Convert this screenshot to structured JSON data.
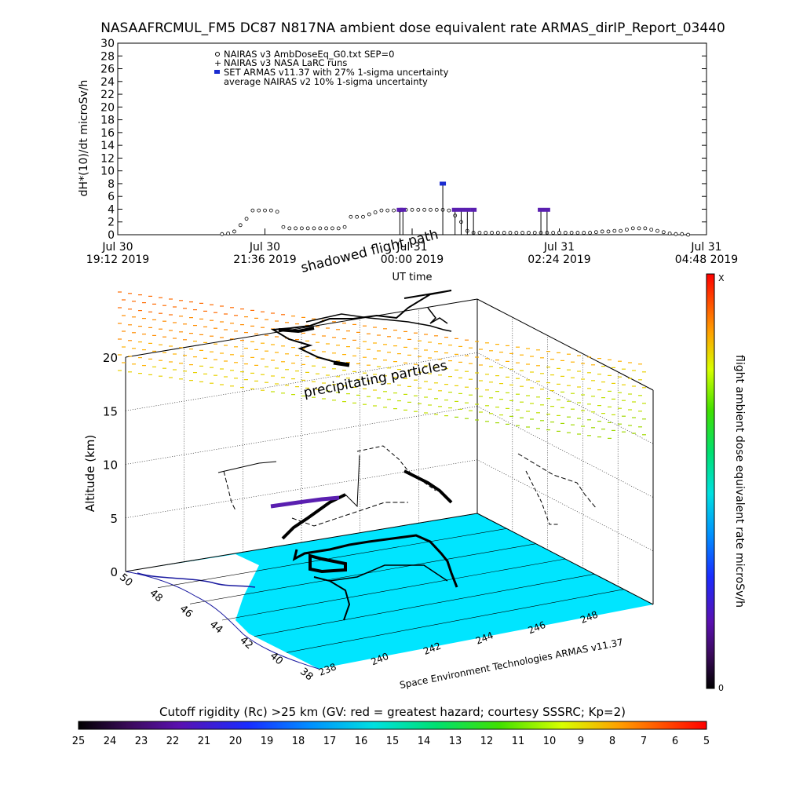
{
  "title": "NASAAFRCMUL_FM5 DC87 N817NA ambient dose equivalent rate ARMAS_dirIP_Report_03440",
  "chart_data": [
    {
      "type": "scatter",
      "ylabel": "dH*(10)/dt microSv/h",
      "xlabel": "UT time",
      "ylim": [
        0,
        30
      ],
      "yticks": [
        0,
        2,
        4,
        6,
        8,
        10,
        12,
        14,
        16,
        18,
        20,
        22,
        24,
        26,
        28,
        30
      ],
      "xticks": [
        {
          "line1": "Jul 30",
          "line2": "19:12 2019"
        },
        {
          "line1": "Jul 30",
          "line2": "21:36 2019"
        },
        {
          "line1": "Jul 31",
          "line2": "00:00 2019"
        },
        {
          "line1": "Jul 31",
          "line2": "02:24 2019"
        },
        {
          "line1": "Jul 31",
          "line2": "04:48 2019"
        }
      ],
      "legend": [
        "NAIRAS v3 AmbDoseEq_G0.txt SEP=0",
        "NAIRAS v3 NASA LaRC runs",
        "SET ARMAS v11.37 with 27% 1-sigma uncertainty",
        "average NAIRAS v2 10% 1-sigma uncertainty"
      ],
      "legend_position": "top-left",
      "nairas_series_hours": [
        20.9,
        21.0,
        21.1,
        21.2,
        21.3,
        21.4,
        21.5,
        21.6,
        21.7,
        21.8,
        21.9,
        22.0,
        22.1,
        22.2,
        22.3,
        22.4,
        22.5,
        22.6,
        22.7,
        22.8,
        22.9,
        23.0,
        23.1,
        23.2,
        23.3,
        23.4,
        23.5,
        23.6,
        23.7,
        23.8,
        23.9,
        24.0,
        24.1,
        24.2,
        24.3,
        24.4,
        24.5,
        24.6,
        24.7,
        24.8,
        24.9,
        25.0,
        25.1,
        25.2,
        25.3,
        25.4,
        25.5,
        25.6,
        25.7,
        25.8,
        25.9,
        26.0,
        26.1,
        26.2,
        26.3,
        26.4,
        26.5,
        26.6,
        26.7,
        26.8,
        26.9,
        27.0,
        27.1,
        27.2,
        27.3,
        27.4,
        27.5,
        27.6,
        27.7,
        27.8,
        27.9,
        28.0,
        28.1,
        28.2,
        28.3,
        28.4,
        28.5
      ],
      "nairas_series_values": [
        0.1,
        0.2,
        0.5,
        1.5,
        2.5,
        3.8,
        3.8,
        3.8,
        3.8,
        3.6,
        1.2,
        1.0,
        1.0,
        1.0,
        1.0,
        1.0,
        1.0,
        1.0,
        1.0,
        1.0,
        1.2,
        2.8,
        2.8,
        2.8,
        3.2,
        3.5,
        3.8,
        3.8,
        3.8,
        3.8,
        3.9,
        3.9,
        3.9,
        3.9,
        3.9,
        3.9,
        3.9,
        3.8,
        3.0,
        2.0,
        0.6,
        0.3,
        0.3,
        0.3,
        0.3,
        0.3,
        0.3,
        0.3,
        0.3,
        0.3,
        0.3,
        0.3,
        0.3,
        0.3,
        0.3,
        0.3,
        0.3,
        0.3,
        0.3,
        0.3,
        0.3,
        0.4,
        0.5,
        0.5,
        0.6,
        0.6,
        0.8,
        1.0,
        1.0,
        1.0,
        0.8,
        0.6,
        0.4,
        0.2,
        0.1,
        0.1,
        0.0
      ],
      "armas_points": [
        {
          "x": 23.8,
          "y": 3.9
        },
        {
          "x": 23.85,
          "y": 3.9
        },
        {
          "x": 24.5,
          "y": 8.0
        },
        {
          "x": 24.7,
          "y": 3.9
        },
        {
          "x": 24.8,
          "y": 3.9
        },
        {
          "x": 24.9,
          "y": 3.9
        },
        {
          "x": 25.0,
          "y": 3.9
        },
        {
          "x": 26.1,
          "y": 3.9
        },
        {
          "x": 26.2,
          "y": 3.9
        }
      ]
    },
    {
      "type": "scatter",
      "zlabel": "Altitude (km)",
      "zticks": [
        0,
        5,
        10,
        15,
        20
      ],
      "lat_ticks": [
        "50",
        "48",
        "46",
        "44",
        "42",
        "40",
        "38"
      ],
      "lon_ticks": [
        "238",
        "240",
        "242",
        "244",
        "246",
        "248"
      ],
      "annotations": [
        "shadowed flight path",
        "precipitating particles"
      ],
      "credit": "Space Environment Technologies ARMAS v11.37",
      "colorbar_label": "flight ambient dose equivalent rate microSv/h",
      "colorbar_top": "X",
      "colorbar_bottom": "0",
      "bottom_colorbar_label": "Cutoff rigidity (Rc) >25 km (GV: red = greatest hazard; courtesy SSSRC; Kp=2)",
      "bottom_colorbar_ticks": [
        "25",
        "24",
        "23",
        "22",
        "21",
        "20",
        "19",
        "18",
        "17",
        "16",
        "15",
        "14",
        "13",
        "12",
        "11",
        "10",
        "9",
        "8",
        "7",
        "6",
        "5"
      ]
    }
  ],
  "colors": {
    "nairas": "#000000",
    "armas": "#5a1fb0",
    "armas_peak": "#1a2cd0",
    "land": "#00e5ff",
    "coast": "#1a1aa0"
  }
}
